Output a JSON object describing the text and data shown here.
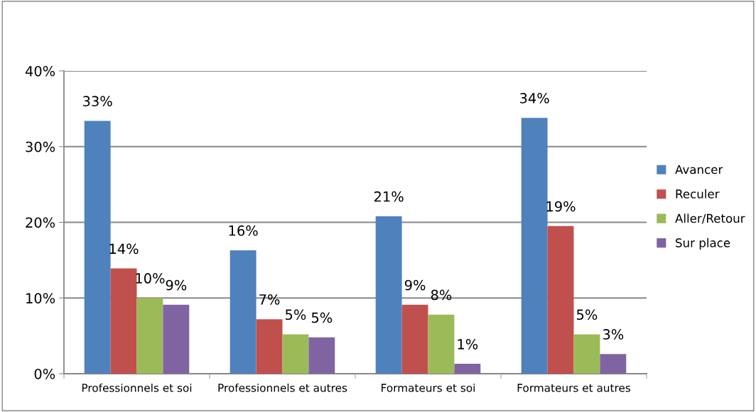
{
  "chart_data": {
    "type": "bar",
    "categories": [
      "Professionnels et soi",
      "Professionnels et autres",
      "Formateurs et soi",
      "Formateurs et autres"
    ],
    "series": [
      {
        "name": "Avancer",
        "color": "#4f81bd",
        "values": [
          33.4,
          16.3,
          20.8,
          33.8
        ],
        "value_labels": [
          "33%",
          "16%",
          "21%",
          "34%"
        ]
      },
      {
        "name": "Reculer",
        "color": "#c0504d",
        "values": [
          13.9,
          7.2,
          9.1,
          19.5
        ],
        "value_labels": [
          "14%",
          "7%",
          "9%",
          "19%"
        ]
      },
      {
        "name": "Aller/Retour",
        "color": "#9bbb59",
        "values": [
          10.0,
          5.2,
          7.8,
          5.2
        ],
        "value_labels": [
          "10%",
          "5%",
          "8%",
          "5%"
        ]
      },
      {
        "name": "Sur place",
        "color": "#8064a2",
        "values": [
          9.1,
          4.8,
          1.3,
          2.6
        ],
        "value_labels": [
          "9%",
          "5%",
          "1%",
          "3%"
        ]
      }
    ],
    "ylim": [
      0,
      40
    ],
    "yticks": [
      {
        "value": 0,
        "label": "0%"
      },
      {
        "value": 10,
        "label": "10%"
      },
      {
        "value": 20,
        "label": "20%"
      },
      {
        "value": 30,
        "label": "30%"
      },
      {
        "value": 40,
        "label": "40%"
      }
    ],
    "grid": "y",
    "legend": "right"
  }
}
